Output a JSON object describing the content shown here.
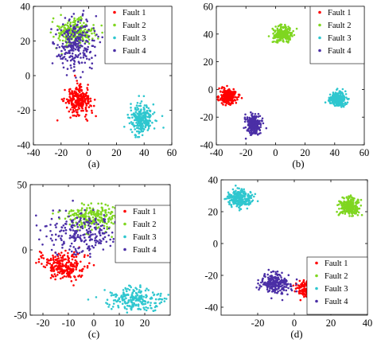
{
  "colors": {
    "fault1": "#ff0000",
    "fault2": "#7fd620",
    "fault3": "#2fc7cf",
    "fault4": "#4b2fa6"
  },
  "chart_data": [
    {
      "panel": "(a)",
      "type": "scatter",
      "xlim": [
        -40,
        60
      ],
      "ylim": [
        -40,
        40
      ],
      "xticks": [
        -40,
        -20,
        0,
        20,
        40,
        60
      ],
      "yticks": [
        -40,
        -20,
        0,
        20,
        40
      ],
      "legend_position": "top-right",
      "series": [
        {
          "name": "Fault 1",
          "color": "#ff0000",
          "center": [
            -8,
            -15
          ],
          "spread": [
            5,
            4.5
          ]
        },
        {
          "name": "Fault 2",
          "color": "#7fd620",
          "center": [
            -10,
            25
          ],
          "spread": [
            7,
            4
          ]
        },
        {
          "name": "Fault 3",
          "color": "#2fc7cf",
          "center": [
            38,
            -25
          ],
          "spread": [
            5,
            5
          ]
        },
        {
          "name": "Fault 4",
          "color": "#4b2fa6",
          "center": [
            -10,
            17
          ],
          "spread": [
            8,
            9
          ]
        }
      ]
    },
    {
      "panel": "(b)",
      "type": "scatter",
      "xlim": [
        -40,
        60
      ],
      "ylim": [
        -40,
        60
      ],
      "xticks": [
        -40,
        -20,
        0,
        20,
        40,
        60
      ],
      "yticks": [
        -40,
        -20,
        0,
        20,
        40,
        60
      ],
      "legend_position": "top-right",
      "series": [
        {
          "name": "Fault 1",
          "color": "#ff0000",
          "center": [
            -32,
            -5
          ],
          "spread": [
            3,
            3
          ]
        },
        {
          "name": "Fault 2",
          "color": "#7fd620",
          "center": [
            5,
            40
          ],
          "spread": [
            3.5,
            3
          ]
        },
        {
          "name": "Fault 3",
          "color": "#2fc7cf",
          "center": [
            42,
            -7
          ],
          "spread": [
            3,
            3
          ]
        },
        {
          "name": "Fault 4",
          "color": "#4b2fa6",
          "center": [
            -15,
            -25
          ],
          "spread": [
            3,
            4
          ]
        }
      ]
    },
    {
      "panel": "(c)",
      "type": "scatter",
      "xlim": [
        -25,
        30
      ],
      "ylim": [
        -50,
        50
      ],
      "xticks": [
        -20,
        -10,
        0,
        10,
        20
      ],
      "yticks": [
        -50,
        0,
        50
      ],
      "legend_position": "top-right",
      "series": [
        {
          "name": "Fault 1",
          "color": "#ff0000",
          "center": [
            -12,
            -12
          ],
          "spread": [
            5,
            5.5
          ]
        },
        {
          "name": "Fault 2",
          "color": "#7fd620",
          "center": [
            0,
            25
          ],
          "spread": [
            6,
            5
          ]
        },
        {
          "name": "Fault 3",
          "color": "#2fc7cf",
          "center": [
            16,
            -38
          ],
          "spread": [
            6,
            4.5
          ]
        },
        {
          "name": "Fault 4",
          "color": "#4b2fa6",
          "center": [
            -4,
            12
          ],
          "spread": [
            8,
            10
          ]
        }
      ]
    },
    {
      "panel": "(d)",
      "type": "scatter",
      "xlim": [
        -40,
        40
      ],
      "ylim": [
        -45,
        40
      ],
      "xticks": [
        -20,
        0,
        20,
        40
      ],
      "yticks": [
        -40,
        -20,
        0,
        20,
        40
      ],
      "legend_position": "bottom-right",
      "series": [
        {
          "name": "Fault 1",
          "color": "#ff0000",
          "center": [
            8,
            -28
          ],
          "spread": [
            3.5,
            3
          ]
        },
        {
          "name": "Fault 2",
          "color": "#7fd620",
          "center": [
            30,
            23
          ],
          "spread": [
            3,
            3
          ]
        },
        {
          "name": "Fault 3",
          "color": "#2fc7cf",
          "center": [
            -30,
            28
          ],
          "spread": [
            3.5,
            3
          ]
        },
        {
          "name": "Fault 4",
          "color": "#4b2fa6",
          "center": [
            -10,
            -25
          ],
          "spread": [
            5,
            3.5
          ]
        }
      ]
    }
  ]
}
